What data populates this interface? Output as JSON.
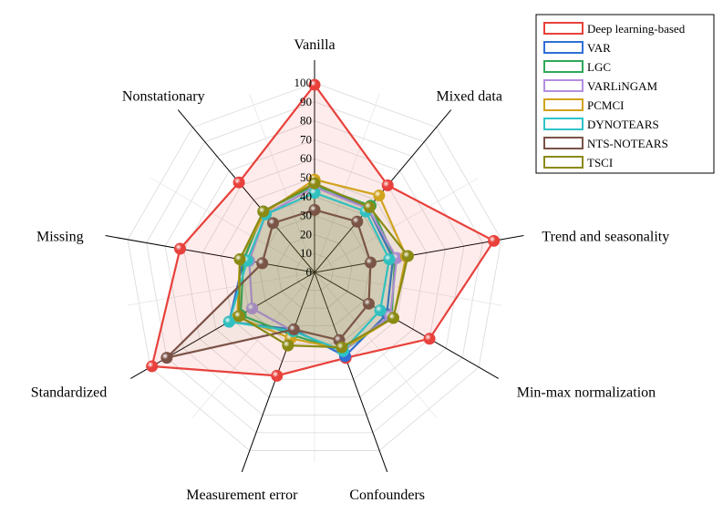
{
  "chart_data": {
    "type": "radar",
    "axes": [
      "Vanilla",
      "Mixed data",
      "Trend and seasonality",
      "Min-max normalization",
      "Confounders",
      "Measurement error",
      "Standardized",
      "Missing",
      "Nonstationary"
    ],
    "rlim": [
      0,
      100
    ],
    "ticks": [
      "0",
      "10",
      "20",
      "30",
      "40",
      "50",
      "60",
      "70",
      "80",
      "90",
      "100"
    ],
    "grid": true,
    "legend_position": "top-right",
    "series": [
      {
        "name": "Deep learning-based",
        "color": "#e8413c",
        "values": [
          99,
          60,
          96,
          70,
          48,
          58,
          99,
          72,
          62
        ],
        "fill": true
      },
      {
        "name": "VAR",
        "color": "#2e6fd6",
        "values": [
          47,
          44,
          42,
          44,
          47,
          32,
          52,
          38,
          42
        ]
      },
      {
        "name": "LGC",
        "color": "#2fa85a",
        "values": [
          46,
          46,
          43,
          47,
          44,
          35,
          45,
          38,
          42
        ]
      },
      {
        "name": "VARLiNGAM",
        "color": "#b38ee0",
        "values": [
          45,
          44,
          44,
          46,
          44,
          33,
          38,
          35,
          40
        ]
      },
      {
        "name": "PCMCI",
        "color": "#d1a31c",
        "values": [
          49,
          53,
          49,
          48,
          43,
          37,
          47,
          40,
          41
        ]
      },
      {
        "name": "DYNOTEARS",
        "color": "#2cc4c8",
        "values": [
          42,
          42,
          40,
          40,
          44,
          33,
          52,
          36,
          40
        ]
      },
      {
        "name": "NTS-NOTEARS",
        "color": "#7b5247",
        "values": [
          33,
          35,
          30,
          33,
          38,
          32,
          90,
          28,
          34
        ]
      },
      {
        "name": "TSCI",
        "color": "#8a8a14",
        "values": [
          47,
          45,
          50,
          48,
          42,
          41,
          46,
          40,
          42
        ]
      }
    ]
  }
}
